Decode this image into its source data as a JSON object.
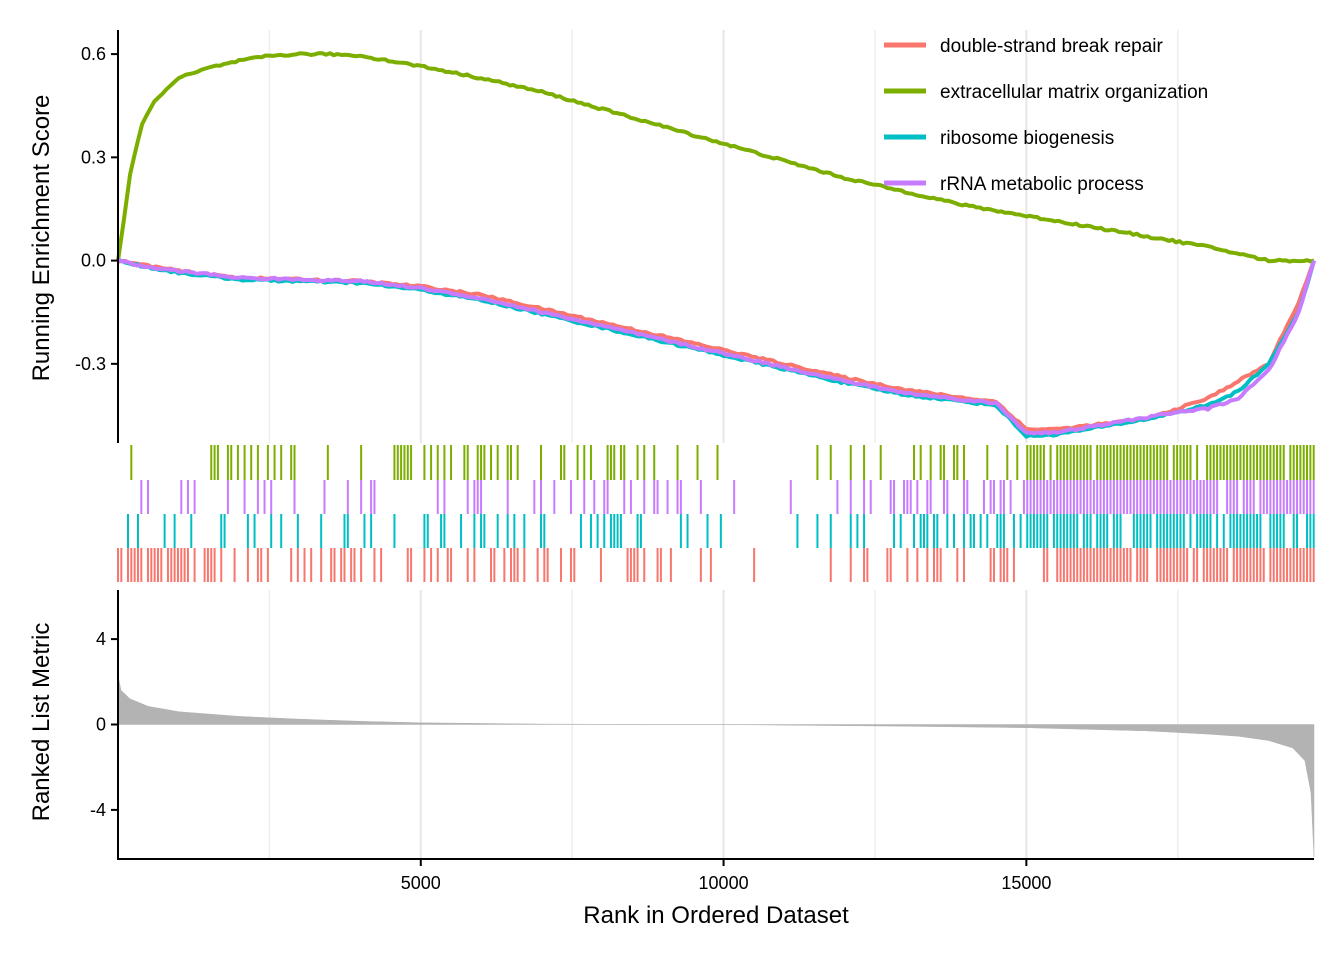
{
  "chart_data": {
    "type": "line",
    "title": "",
    "xlabel": "Rank in Ordered Dataset",
    "xlim": [
      0,
      19750
    ],
    "x_ticks": [
      {
        "value": 5000,
        "label": "5000"
      },
      {
        "value": 10000,
        "label": "10000"
      },
      {
        "value": 15000,
        "label": "15000"
      }
    ],
    "panels": {
      "enrichment": {
        "ylabel": "Running Enrichment Score",
        "ylim": [
          -0.53,
          0.67
        ],
        "y_ticks": [
          {
            "value": 0.6,
            "label": "0.6"
          },
          {
            "value": 0.3,
            "label": "0.3"
          },
          {
            "value": 0.0,
            "label": "0.0"
          },
          {
            "value": -0.3,
            "label": "-0.3"
          }
        ]
      },
      "metric": {
        "ylabel": "Ranked List Metric",
        "ylim": [
          -6.3,
          6.3
        ],
        "y_ticks": [
          {
            "value": 4,
            "label": "4"
          },
          {
            "value": 0,
            "label": "0"
          },
          {
            "value": -4,
            "label": "-4"
          }
        ]
      }
    },
    "legend": {
      "position": "top-right"
    },
    "series": [
      {
        "name": "double-strand break repair",
        "color": "#F8766D",
        "x": [
          0,
          500,
          1000,
          2000,
          3000,
          4000,
          5000,
          6000,
          7000,
          8000,
          9000,
          10000,
          11000,
          12000,
          13000,
          14000,
          14500,
          15000,
          15500,
          16000,
          16500,
          17000,
          17500,
          18000,
          18500,
          19000,
          19500,
          19750
        ],
        "values": [
          0.0,
          -0.015,
          -0.03,
          -0.05,
          -0.055,
          -0.06,
          -0.075,
          -0.1,
          -0.14,
          -0.18,
          -0.22,
          -0.26,
          -0.3,
          -0.34,
          -0.375,
          -0.4,
          -0.41,
          -0.49,
          -0.49,
          -0.48,
          -0.47,
          -0.46,
          -0.43,
          -0.4,
          -0.35,
          -0.3,
          -0.12,
          0.0
        ]
      },
      {
        "name": "extracellular matrix organization",
        "color": "#7CAE00",
        "x": [
          0,
          100,
          200,
          400,
          600,
          800,
          1000,
          1500,
          2000,
          2500,
          3000,
          3500,
          4000,
          5000,
          6000,
          7000,
          8000,
          9000,
          10000,
          11000,
          12000,
          13000,
          14000,
          15000,
          16000,
          17000,
          18000,
          19000,
          19750
        ],
        "values": [
          0.0,
          0.12,
          0.25,
          0.4,
          0.46,
          0.5,
          0.53,
          0.56,
          0.58,
          0.595,
          0.6,
          0.6,
          0.595,
          0.565,
          0.53,
          0.49,
          0.44,
          0.39,
          0.34,
          0.29,
          0.24,
          0.2,
          0.16,
          0.13,
          0.1,
          0.07,
          0.04,
          0.0,
          0.0
        ]
      },
      {
        "name": "ribosome biogenesis",
        "color": "#00BFC4",
        "x": [
          0,
          500,
          1000,
          2000,
          3000,
          4000,
          5000,
          6000,
          7000,
          8000,
          9000,
          10000,
          11000,
          12000,
          13000,
          14000,
          14500,
          15000,
          15500,
          16000,
          16500,
          17000,
          17500,
          18000,
          18500,
          19000,
          19500,
          19750
        ],
        "values": [
          0.0,
          -0.02,
          -0.035,
          -0.055,
          -0.06,
          -0.065,
          -0.085,
          -0.115,
          -0.155,
          -0.195,
          -0.235,
          -0.275,
          -0.315,
          -0.355,
          -0.39,
          -0.41,
          -0.42,
          -0.51,
          -0.505,
          -0.49,
          -0.475,
          -0.46,
          -0.44,
          -0.42,
          -0.38,
          -0.3,
          -0.15,
          0.0
        ]
      },
      {
        "name": "rRNA metabolic process",
        "color": "#C77CFF",
        "x": [
          0,
          500,
          1000,
          2000,
          3000,
          4000,
          5000,
          6000,
          7000,
          8000,
          9000,
          10000,
          11000,
          12000,
          13000,
          14000,
          14500,
          15000,
          15500,
          16000,
          16500,
          17000,
          17500,
          18000,
          18500,
          19000,
          19500,
          19750
        ],
        "values": [
          0.0,
          -0.02,
          -0.03,
          -0.05,
          -0.055,
          -0.06,
          -0.08,
          -0.11,
          -0.15,
          -0.19,
          -0.23,
          -0.27,
          -0.31,
          -0.35,
          -0.385,
          -0.405,
          -0.415,
          -0.5,
          -0.5,
          -0.485,
          -0.47,
          -0.455,
          -0.44,
          -0.43,
          -0.4,
          -0.32,
          -0.15,
          0.0
        ]
      }
    ],
    "ranked_metric": {
      "x": [
        0,
        50,
        200,
        500,
        1000,
        2000,
        3000,
        4000,
        5000,
        7000,
        9000,
        10000,
        11000,
        13000,
        15000,
        17000,
        18000,
        18500,
        19000,
        19400,
        19600,
        19700,
        19750
      ],
      "values": [
        2.3,
        1.6,
        1.2,
        0.85,
        0.6,
        0.38,
        0.25,
        0.15,
        0.08,
        0.02,
        0.0,
        0.0,
        -0.03,
        -0.08,
        -0.15,
        -0.3,
        -0.45,
        -0.55,
        -0.75,
        -1.1,
        -1.7,
        -3.2,
        -6.2
      ]
    }
  }
}
